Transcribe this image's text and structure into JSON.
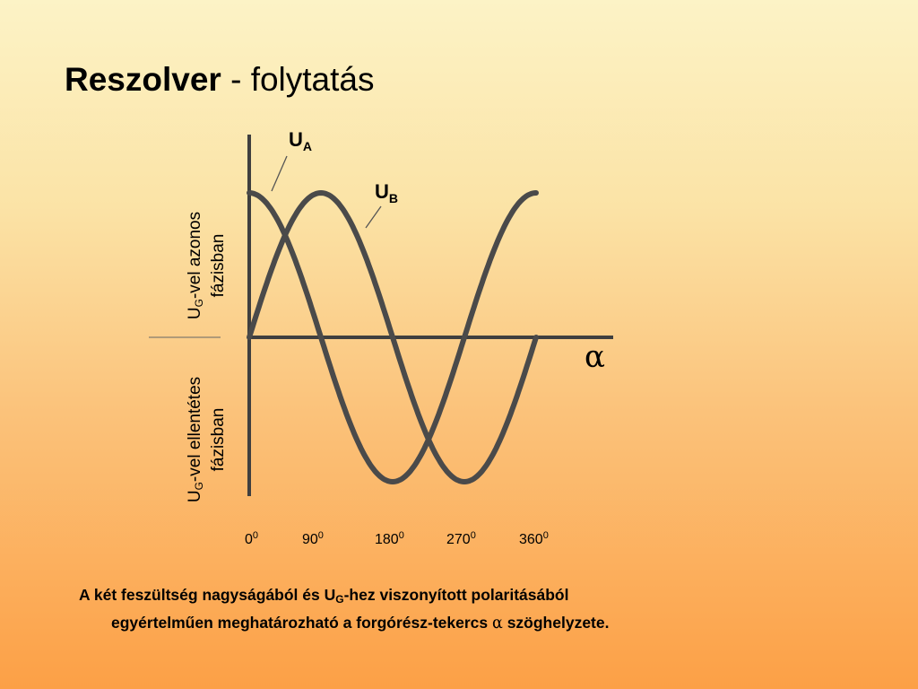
{
  "slide": {
    "title_bold": "Reszolver",
    "title_rest": " - folytatás"
  },
  "diagram": {
    "curves": [
      {
        "name": "U_A",
        "label_main": "U",
        "label_sub": "A",
        "function": "cos"
      },
      {
        "name": "U_B",
        "label_main": "U",
        "label_sub": "B",
        "function": "sin"
      }
    ],
    "axis_symbol": "α",
    "x_ticks": [
      {
        "value": "0",
        "unit": "0"
      },
      {
        "value": "90",
        "unit": "0"
      },
      {
        "value": "180",
        "unit": "0"
      },
      {
        "value": "270",
        "unit": "0"
      },
      {
        "value": "360",
        "unit": "0"
      }
    ],
    "x_range_deg": [
      0,
      360
    ],
    "y_range": [
      -1,
      1
    ],
    "upper_label": {
      "u": "U",
      "sub": "G",
      "line1_rest": "-vel azonos",
      "line2": "fázisban"
    },
    "lower_label": {
      "u": "U",
      "sub": "G",
      "line1_rest": "-vel ellentétes",
      "line2": "fázisban"
    },
    "colors": {
      "curve": "#4a4a4a",
      "axis": "#3f3f3f",
      "leader": "#555555"
    }
  },
  "caption": {
    "part1": "A két feszültség nagyságából és U",
    "sub": "G",
    "part2": "-hez viszonyított polaritásából",
    "line2_part1": "egyértelműen meghatározható a forgórész-tekercs ",
    "alpha": "α",
    "line2_part2": " szöghelyzete."
  }
}
